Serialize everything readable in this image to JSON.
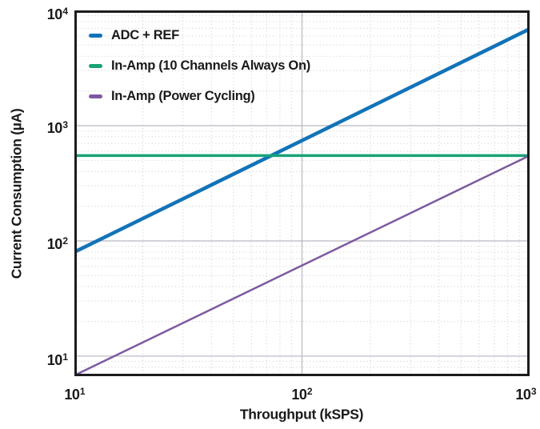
{
  "chart_data": {
    "type": "line",
    "title": "",
    "xlabel": "Throughput (kSPS)",
    "ylabel": "Current Consumption (µA)",
    "x_scale": "log",
    "y_scale": "log",
    "xlim": [
      10,
      1000
    ],
    "ylim": [
      6.7,
      10000
    ],
    "x_ticks": [
      10,
      100,
      1000
    ],
    "y_ticks": [
      10,
      100,
      1000,
      10000
    ],
    "x_tick_labels": [
      {
        "base": "10",
        "exp": "1"
      },
      {
        "base": "10",
        "exp": "2"
      },
      {
        "base": "10",
        "exp": "3"
      }
    ],
    "y_tick_labels": [
      {
        "base": "10",
        "exp": "4"
      },
      {
        "base": "10",
        "exp": "3"
      },
      {
        "base": "10",
        "exp": "2"
      },
      {
        "base": "10",
        "exp": "1"
      }
    ],
    "grid": {
      "major": true,
      "minor": true,
      "minor_style": "dotted"
    },
    "legend_position": "upper-left-inside",
    "series": [
      {
        "name": "ADC + REF",
        "color": "#1273b8",
        "width": 4.5,
        "points": [
          [
            10,
            80
          ],
          [
            1000,
            6900
          ]
        ]
      },
      {
        "name": "In-Amp (10 Channels Always On)",
        "color": "#19a377",
        "width": 3.5,
        "points": [
          [
            10,
            550
          ],
          [
            1000,
            550
          ]
        ]
      },
      {
        "name": "In-Amp (Power Cycling)",
        "color": "#7d59a0",
        "width": 2.5,
        "points": [
          [
            10,
            6.8
          ],
          [
            1000,
            550
          ]
        ]
      }
    ],
    "colors": {
      "background": "#ffffff",
      "plot_border": "#1c1c1e",
      "grid_major": "#b6b6c0",
      "grid_minor": "#d9d9de",
      "text": "#1a1a1a"
    }
  }
}
